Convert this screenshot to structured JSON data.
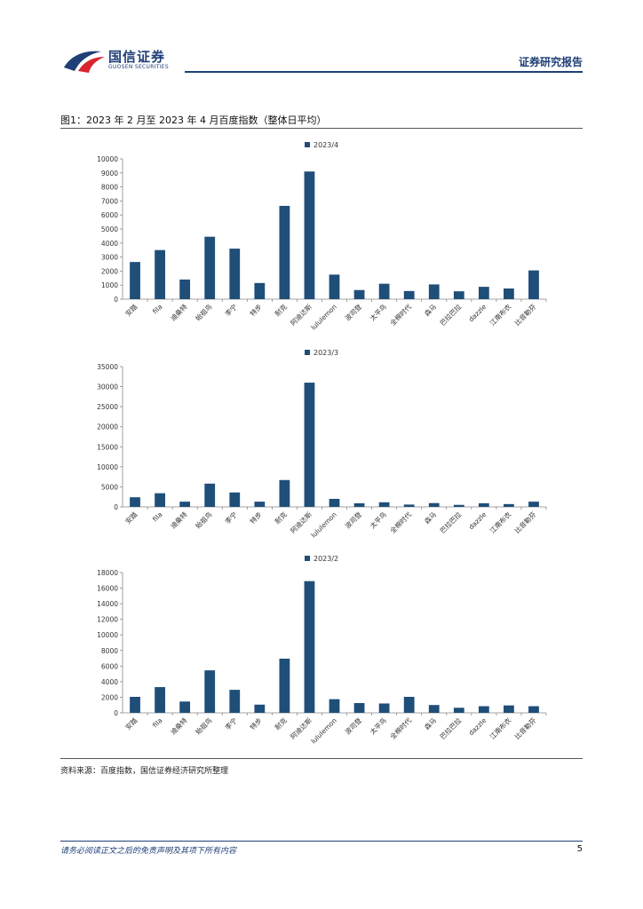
{
  "header": {
    "brand_cn": "国信证券",
    "brand_en": "GUOSEN SECURITIES",
    "report_type": "证券研究报告",
    "brand_color": "#1f3f77",
    "accent_color": "#d7262f"
  },
  "figure": {
    "title": "图1：2023 年 2 月至 2023 年 4 月百度指数（整体日平均）"
  },
  "source": "资料来源：百度指数，国信证券经济研究所整理",
  "footer": {
    "disclaimer": "请务必阅读正文之后的免责声明及其项下所有内容",
    "page_number": "5"
  },
  "chart_data": [
    {
      "type": "bar",
      "title": "",
      "legend": "2023/4",
      "legend_position": "top-center",
      "color": "#1f4e79",
      "categories": [
        "安踏",
        "fila",
        "迪桑特",
        "始祖鸟",
        "李宁",
        "特步",
        "耐克",
        "阿迪达斯",
        "lululemon",
        "波司登",
        "太平鸟",
        "全棉时代",
        "森马",
        "巴拉巴拉",
        "dazzle",
        "江南布衣",
        "比音勒芬"
      ],
      "values": [
        2650,
        3500,
        1400,
        4450,
        3600,
        1150,
        6650,
        9100,
        1750,
        650,
        1100,
        580,
        1050,
        560,
        880,
        760,
        2050
      ],
      "ylim": [
        0,
        10000
      ],
      "yticks": [
        0,
        1000,
        2000,
        3000,
        4000,
        5000,
        6000,
        7000,
        8000,
        9000,
        10000
      ]
    },
    {
      "type": "bar",
      "title": "",
      "legend": "2023/3",
      "legend_position": "top-center",
      "color": "#1f4e79",
      "categories": [
        "安踏",
        "fila",
        "迪桑特",
        "始祖鸟",
        "李宁",
        "特步",
        "耐克",
        "阿迪达斯",
        "lululemon",
        "波司登",
        "太平鸟",
        "全棉时代",
        "森马",
        "巴拉巴拉",
        "dazzle",
        "江南布衣",
        "比音勒芬"
      ],
      "values": [
        2400,
        3400,
        1300,
        5800,
        3600,
        1300,
        6700,
        31000,
        2000,
        900,
        1150,
        580,
        950,
        500,
        900,
        700,
        1300
      ],
      "ylim": [
        0,
        35000
      ],
      "yticks": [
        0,
        5000,
        10000,
        15000,
        20000,
        25000,
        30000,
        35000
      ]
    },
    {
      "type": "bar",
      "title": "",
      "legend": "2023/2",
      "legend_position": "top-center",
      "color": "#1f4e79",
      "categories": [
        "安踏",
        "fila",
        "迪桑特",
        "始祖鸟",
        "李宁",
        "特步",
        "耐克",
        "阿迪达斯",
        "lululemon",
        "波司登",
        "太平鸟",
        "全棉时代",
        "森马",
        "巴拉巴拉",
        "dazzle",
        "江南布衣",
        "比音勒芬"
      ],
      "values": [
        2050,
        3300,
        1450,
        5450,
        2950,
        1050,
        6950,
        16900,
        1750,
        1250,
        1200,
        2050,
        1000,
        650,
        850,
        950,
        850
      ],
      "ylim": [
        0,
        18000
      ],
      "yticks": [
        0,
        2000,
        4000,
        6000,
        8000,
        10000,
        12000,
        14000,
        16000,
        18000
      ]
    }
  ]
}
